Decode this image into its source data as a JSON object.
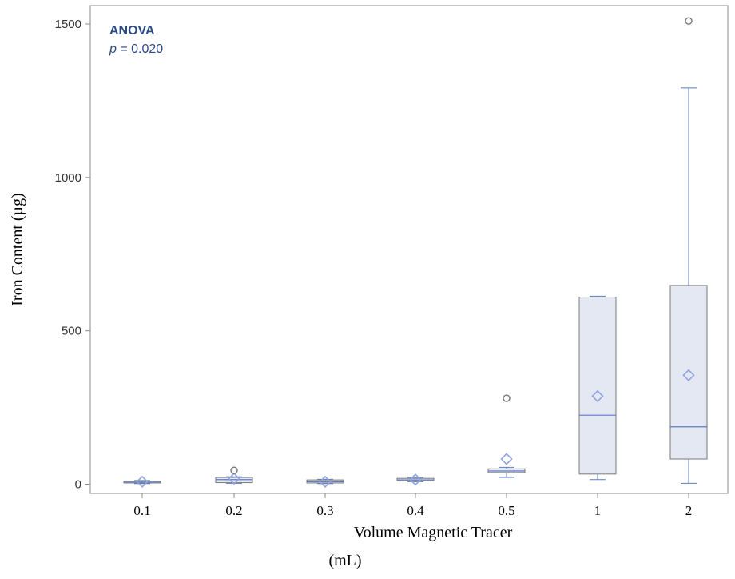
{
  "chart_data": {
    "type": "box",
    "xlabel_line1": "Volume Magnetic Tracer",
    "xlabel_line2": "(mL)",
    "ylabel": "Iron Content (µg)",
    "ylim": [
      -30,
      1560
    ],
    "yticks": [
      0,
      500,
      1000,
      1500
    ],
    "ytick_labels": [
      "0",
      "500",
      "1000",
      "1500"
    ],
    "categories": [
      "0.1",
      "0.2",
      "0.3",
      "0.4",
      "0.5",
      "1",
      "2"
    ],
    "boxes": [
      {
        "category": "0.1",
        "min": 2,
        "q1": 4,
        "median": 7,
        "q3": 10,
        "max": 12,
        "mean": 8,
        "outliers": []
      },
      {
        "category": "0.2",
        "min": 3,
        "q1": 5,
        "median": 15,
        "q3": 22,
        "max": 24,
        "mean": 18,
        "outliers": [
          45
        ]
      },
      {
        "category": "0.3",
        "min": 2,
        "q1": 4,
        "median": 8,
        "q3": 14,
        "max": 16,
        "mean": 8,
        "outliers": []
      },
      {
        "category": "0.4",
        "min": 8,
        "q1": 11,
        "median": 14,
        "q3": 19,
        "max": 22,
        "mean": 15,
        "outliers": []
      },
      {
        "category": "0.5",
        "min": 22,
        "q1": 38,
        "median": 43,
        "q3": 50,
        "max": 55,
        "mean": 82,
        "outliers": [
          280
        ]
      },
      {
        "category": "1",
        "min": 15,
        "q1": 33,
        "median": 225,
        "q3": 610,
        "max": 613,
        "mean": 287,
        "outliers": []
      },
      {
        "category": "2",
        "min": 3,
        "q1": 82,
        "median": 187,
        "q3": 648,
        "max": 1292,
        "mean": 355,
        "outliers": [
          1510
        ]
      }
    ],
    "annotation": {
      "title": "ANOVA",
      "p_label": "p",
      "p_text": " = 0.020"
    },
    "colors": {
      "box_fill": "#e4e8f2",
      "box_edge": "#7a7a7a",
      "median": "#5b7bc6",
      "whisker": "#5b7bc6",
      "mean_marker": "#8ea4de",
      "outlier": "#777777",
      "annotation": "#2a4a86"
    }
  }
}
